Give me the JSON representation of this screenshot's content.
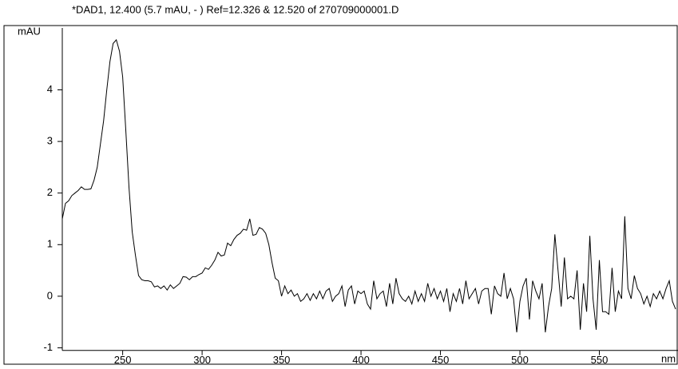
{
  "chart_data": {
    "type": "line",
    "title": "*DAD1, 12.400 (5.7 mAU, - ) Ref=12.326 & 12.520 of 270709000001.D",
    "y_label": "mAU",
    "x_label": "nm",
    "xlim": [
      212,
      600
    ],
    "ylim": [
      -1.05,
      5.2
    ],
    "xticks": [
      250,
      300,
      350,
      400,
      450,
      500,
      550
    ],
    "yticks": [
      -1,
      0,
      1,
      2,
      3,
      4
    ],
    "color": "#000000",
    "x": [
      212,
      214,
      216,
      218,
      220,
      222,
      224,
      226,
      228,
      230,
      232,
      234,
      236,
      238,
      240,
      242,
      244,
      246,
      248,
      250,
      252,
      254,
      256,
      258,
      260,
      262,
      264,
      266,
      268,
      270,
      272,
      274,
      276,
      278,
      280,
      282,
      284,
      286,
      288,
      290,
      292,
      294,
      296,
      298,
      300,
      302,
      304,
      306,
      308,
      310,
      312,
      314,
      316,
      318,
      320,
      322,
      324,
      326,
      328,
      330,
      332,
      334,
      336,
      338,
      340,
      342,
      344,
      346,
      348,
      350,
      352,
      354,
      356,
      358,
      360,
      362,
      364,
      366,
      368,
      370,
      372,
      374,
      376,
      378,
      380,
      382,
      384,
      386,
      388,
      390,
      392,
      394,
      396,
      398,
      400,
      402,
      404,
      406,
      408,
      410,
      412,
      414,
      416,
      418,
      420,
      422,
      424,
      426,
      428,
      430,
      432,
      434,
      436,
      438,
      440,
      442,
      444,
      446,
      448,
      450,
      452,
      454,
      456,
      458,
      460,
      462,
      464,
      466,
      468,
      470,
      472,
      474,
      476,
      478,
      480,
      482,
      484,
      486,
      488,
      490,
      492,
      494,
      496,
      498,
      500,
      502,
      504,
      506,
      508,
      510,
      512,
      514,
      516,
      518,
      520,
      522,
      524,
      526,
      528,
      530,
      532,
      534,
      536,
      538,
      540,
      542,
      544,
      546,
      548,
      550,
      552,
      554,
      556,
      558,
      560,
      562,
      564,
      566,
      568,
      570,
      572,
      574,
      576,
      578,
      580,
      582,
      584,
      586,
      588,
      590,
      592,
      594,
      596,
      598
    ],
    "values": [
      1.5,
      1.8,
      1.85,
      1.95,
      2.0,
      2.05,
      2.12,
      2.07,
      2.07,
      2.08,
      2.25,
      2.5,
      2.95,
      3.4,
      4.0,
      4.55,
      4.9,
      4.97,
      4.75,
      4.25,
      3.2,
      2.1,
      1.25,
      0.8,
      0.4,
      0.32,
      0.3,
      0.3,
      0.28,
      0.18,
      0.2,
      0.15,
      0.2,
      0.12,
      0.22,
      0.15,
      0.2,
      0.25,
      0.38,
      0.37,
      0.32,
      0.38,
      0.38,
      0.42,
      0.45,
      0.55,
      0.52,
      0.6,
      0.7,
      0.85,
      0.78,
      0.8,
      1.03,
      0.98,
      1.1,
      1.18,
      1.22,
      1.3,
      1.28,
      1.5,
      1.18,
      1.2,
      1.33,
      1.3,
      1.22,
      1.0,
      0.65,
      0.35,
      0.3,
      0.0,
      0.2,
      0.05,
      0.12,
      0.0,
      0.05,
      -0.1,
      -0.05,
      0.05,
      -0.08,
      0.05,
      -0.05,
      0.1,
      -0.05,
      0.1,
      0.15,
      -0.1,
      0.0,
      0.05,
      0.2,
      -0.2,
      0.12,
      0.2,
      -0.15,
      0.1,
      0.05,
      0.1,
      -0.15,
      -0.25,
      0.3,
      -0.05,
      0.05,
      0.1,
      -0.2,
      0.25,
      -0.15,
      0.35,
      0.05,
      -0.05,
      -0.1,
      0.0,
      -0.15,
      0.1,
      -0.1,
      0.05,
      -0.1,
      0.25,
      0.0,
      0.15,
      -0.05,
      0.1,
      -0.1,
      0.15,
      -0.3,
      0.05,
      -0.1,
      0.15,
      -0.15,
      0.3,
      -0.05,
      0.05,
      0.15,
      -0.15,
      0.1,
      0.15,
      0.15,
      -0.35,
      0.2,
      0.05,
      0.0,
      0.45,
      -0.05,
      0.15,
      -0.05,
      -0.7,
      -0.1,
      0.2,
      0.35,
      -0.45,
      0.3,
      0.1,
      -0.05,
      0.25,
      -0.7,
      -0.2,
      0.15,
      1.2,
      0.5,
      -0.2,
      0.75,
      -0.05,
      0.0,
      -0.05,
      0.5,
      -0.65,
      0.25,
      -0.3,
      1.17,
      -0.05,
      -0.65,
      0.7,
      -0.3,
      -0.3,
      -0.35,
      0.55,
      -0.3,
      0.1,
      -0.05,
      1.55,
      0.15,
      -0.05,
      0.4,
      0.15,
      0.05,
      -0.15,
      0.0,
      -0.2,
      0.05,
      -0.05,
      0.1,
      -0.05,
      0.15,
      0.3,
      -0.1,
      -0.25
    ]
  }
}
